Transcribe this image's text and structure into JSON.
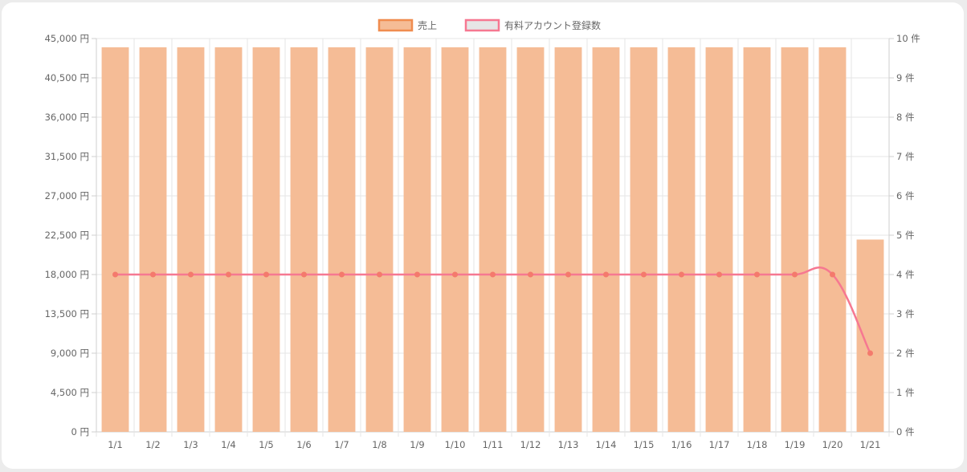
{
  "chart_data": {
    "type": "bar",
    "categories": [
      "1/1",
      "1/2",
      "1/3",
      "1/4",
      "1/5",
      "1/6",
      "1/7",
      "1/8",
      "1/9",
      "1/10",
      "1/11",
      "1/12",
      "1/13",
      "1/14",
      "1/15",
      "1/16",
      "1/17",
      "1/18",
      "1/19",
      "1/20",
      "1/21"
    ],
    "series": [
      {
        "name": "売上",
        "type": "bar",
        "axis": "left",
        "values": [
          44000,
          44000,
          44000,
          44000,
          44000,
          44000,
          44000,
          44000,
          44000,
          44000,
          44000,
          44000,
          44000,
          44000,
          44000,
          44000,
          44000,
          44000,
          44000,
          44000,
          22000
        ],
        "color": "#f5bc96",
        "border_color": "#f08c4f"
      },
      {
        "name": "有料アカウント登録数",
        "type": "line",
        "axis": "right",
        "values": [
          4,
          4,
          4,
          4,
          4,
          4,
          4,
          4,
          4,
          4,
          4,
          4,
          4,
          4,
          4,
          4,
          4,
          4,
          4,
          4,
          2
        ],
        "color": "#f67891",
        "point_color": "#f47a6c",
        "legend_fill": "#e6e6e6"
      }
    ],
    "y_left": {
      "min": 0,
      "max": 45000,
      "ticks": [
        "0 円",
        "4,500 円",
        "9,000 円",
        "13,500 円",
        "18,000 円",
        "22,500 円",
        "27,000 円",
        "31,500 円",
        "36,000 円",
        "40,500 円",
        "45,000 円"
      ]
    },
    "y_right": {
      "min": 0,
      "max": 10,
      "ticks": [
        "0 件",
        "1 件",
        "2 件",
        "3 件",
        "4 件",
        "5 件",
        "6 件",
        "7 件",
        "8 件",
        "9 件",
        "10 件"
      ]
    },
    "legend_position": "top",
    "grid": true
  }
}
